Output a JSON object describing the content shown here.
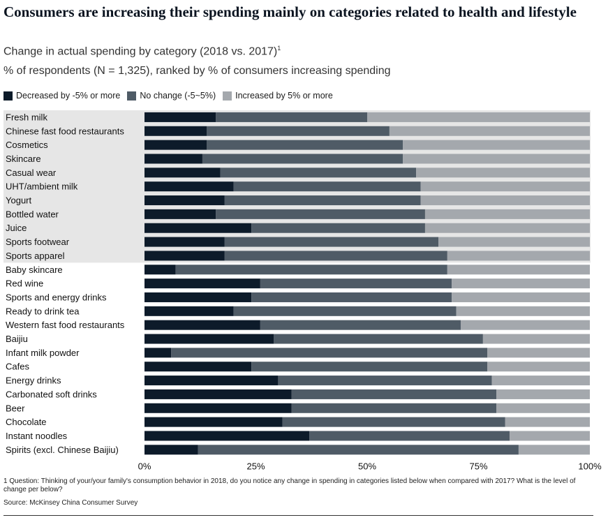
{
  "header": {
    "title": "Consumers are increasing their spending mainly on categories related to health and lifestyle",
    "subtitle": "Change in actual spending by category (2018 vs. 2017)",
    "subtitle_note": "1",
    "subtitle2": "% of respondents (N = 1,325), ranked by % of consumers increasing spending"
  },
  "legend": [
    {
      "label": "Decreased by -5% or more",
      "color": "#0d1b2a"
    },
    {
      "label": "No change (-5~5%)",
      "color": "#4f5b66"
    },
    {
      "label": "Increased by 5% or more",
      "color": "#a4a8ad"
    }
  ],
  "chart_data": {
    "type": "bar",
    "orientation": "horizontal",
    "stacked": true,
    "categories": [
      "Fresh milk",
      "Chinese fast food restaurants",
      "Cosmetics",
      "Skincare",
      "Casual wear",
      "UHT/ambient milk",
      "Yogurt",
      "Bottled water",
      "Juice",
      "Sports footwear",
      "Sports apparel",
      "Baby skincare",
      "Red wine",
      "Sports and energy drinks",
      "Ready to drink tea",
      "Western fast food restaurants",
      "Baijiu",
      "Infant milk powder",
      "Cafes",
      "Energy drinks",
      "Carbonated soft drinks",
      "Beer",
      "Chocolate",
      "Instant noodles",
      "Spirits (excl. Chinese Baijiu)"
    ],
    "series": [
      {
        "name": "Decreased by -5% or more",
        "values": [
          16,
          14,
          14,
          13,
          17,
          20,
          18,
          16,
          24,
          18,
          18,
          7,
          26,
          24,
          20,
          26,
          29,
          6,
          24,
          30,
          33,
          33,
          31,
          37,
          12
        ]
      },
      {
        "name": "No change (-5~5%)",
        "values": [
          34,
          41,
          44,
          45,
          44,
          42,
          44,
          47,
          39,
          48,
          50,
          61,
          43,
          45,
          50,
          45,
          47,
          71,
          53,
          48,
          46,
          46,
          50,
          45,
          72
        ]
      },
      {
        "name": "Increased by 5% or more",
        "values": [
          50,
          45,
          42,
          42,
          39,
          38,
          38,
          37,
          37,
          34,
          32,
          32,
          31,
          31,
          30,
          29,
          24,
          23,
          23,
          22,
          21,
          21,
          19,
          18,
          16
        ]
      }
    ],
    "xlim": [
      0,
      100
    ],
    "x_ticks": [
      "0%",
      "25%",
      "50%",
      "75%",
      "100%"
    ],
    "highlighted_group_count": 11,
    "highlight_color": "#e6e6e6"
  },
  "footer": {
    "footnote": "1 Question: Thinking of your/your family's consumption behavior in 2018, do you notice any change in spending in categories listed below when compared with 2017? What is the level of change per below?",
    "source": "Source: McKinsey China Consumer Survey"
  }
}
